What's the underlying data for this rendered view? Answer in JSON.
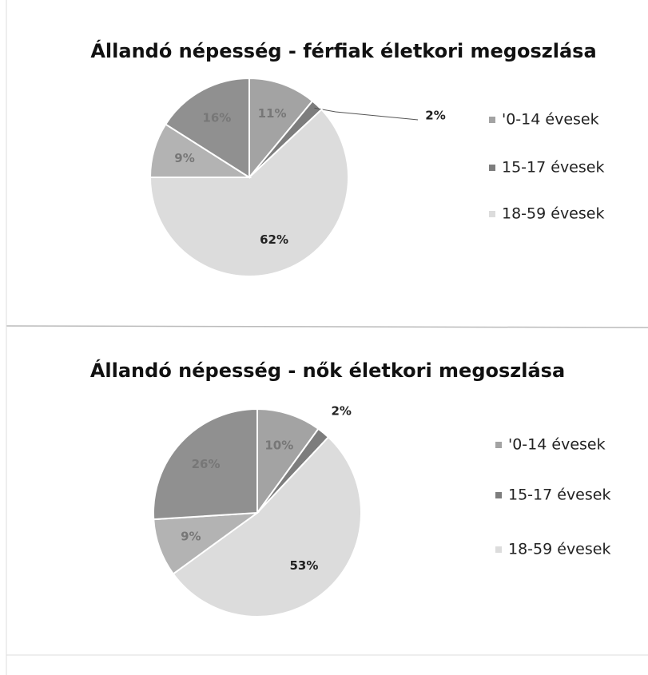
{
  "chart_data": [
    {
      "type": "pie",
      "title": "Állandó népesség - férfiak életkori megoszlása",
      "categories": [
        "'0-14 évesek",
        "15-17 évesek",
        "18-59 évesek",
        null,
        null
      ],
      "values": [
        11,
        2,
        62,
        9,
        16
      ],
      "value_labels": [
        "11%",
        "2%",
        "62%",
        "9%",
        "16%"
      ],
      "colors": [
        "#a3a3a3",
        "#7d7d7d",
        "#dcdcdc",
        "#b3b3b3",
        "#909090"
      ]
    },
    {
      "type": "pie",
      "title": "Állandó népesség - nők életkori megoszlása",
      "categories": [
        "'0-14 évesek",
        "15-17 évesek",
        "18-59 évesek",
        null,
        null
      ],
      "values": [
        10,
        2,
        53,
        9,
        26
      ],
      "value_labels": [
        "10%",
        "2%",
        "53%",
        "9%",
        "26%"
      ],
      "colors": [
        "#a3a3a3",
        "#7d7d7d",
        "#dcdcdc",
        "#b3b3b3",
        "#909090"
      ]
    }
  ]
}
